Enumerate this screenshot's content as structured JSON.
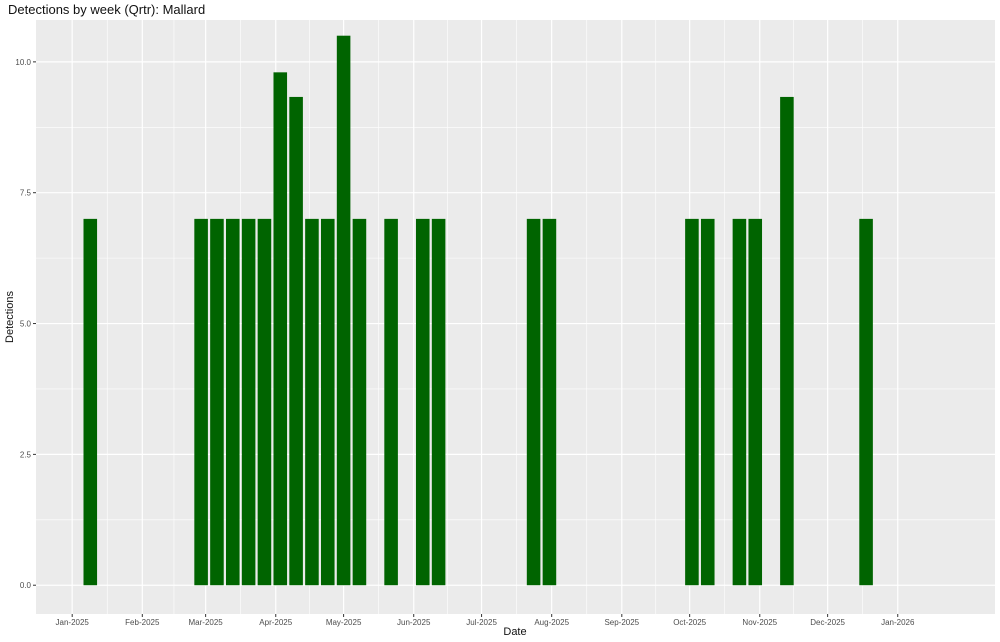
{
  "chart_data": {
    "type": "bar",
    "title": "Detections by week (Qrtr): Mallard",
    "xlabel": "Date",
    "ylabel": "Detections",
    "ylim": [
      -0.55,
      10.8
    ],
    "yticks": [
      0,
      2.5,
      5,
      7.5,
      10
    ],
    "ytick_labels": [
      "0.0",
      "2.5",
      "5.0",
      "7.5",
      "10.0"
    ],
    "xlim": [
      "2024-12-16",
      "2026-02-13"
    ],
    "xticks": [
      "2025-01-01",
      "2025-02-01",
      "2025-03-01",
      "2025-04-01",
      "2025-05-01",
      "2025-06-01",
      "2025-07-01",
      "2025-08-01",
      "2025-09-01",
      "2025-10-01",
      "2025-11-01",
      "2025-12-01",
      "2026-01-01"
    ],
    "xtick_labels": [
      "Jan-2025",
      "Feb-2025",
      "Mar-2025",
      "Apr-2025",
      "May-2025",
      "Jun-2025",
      "Jul-2025",
      "Aug-2025",
      "Sep-2025",
      "Oct-2025",
      "Nov-2025",
      "Dec-2025",
      "Jan-2026"
    ],
    "grid": true,
    "bar_color": "#006400",
    "panel_color": "#ebebeb",
    "grid_color": "#ffffff",
    "weeks": [
      "2025-01-06",
      "2025-02-24",
      "2025-03-03",
      "2025-03-10",
      "2025-03-17",
      "2025-03-24",
      "2025-03-31",
      "2025-04-07",
      "2025-04-14",
      "2025-04-21",
      "2025-04-28",
      "2025-05-05",
      "2025-05-19",
      "2025-06-02",
      "2025-06-09",
      "2025-07-21",
      "2025-07-28",
      "2025-09-29",
      "2025-10-06",
      "2025-10-20",
      "2025-10-27",
      "2025-11-10",
      "2025-12-15"
    ],
    "values": [
      7,
      7,
      7,
      7,
      7,
      7,
      9.8,
      9.33,
      7,
      7,
      10.5,
      7,
      7,
      7,
      7,
      7,
      7,
      7,
      7,
      7,
      7,
      9.33,
      7
    ]
  }
}
